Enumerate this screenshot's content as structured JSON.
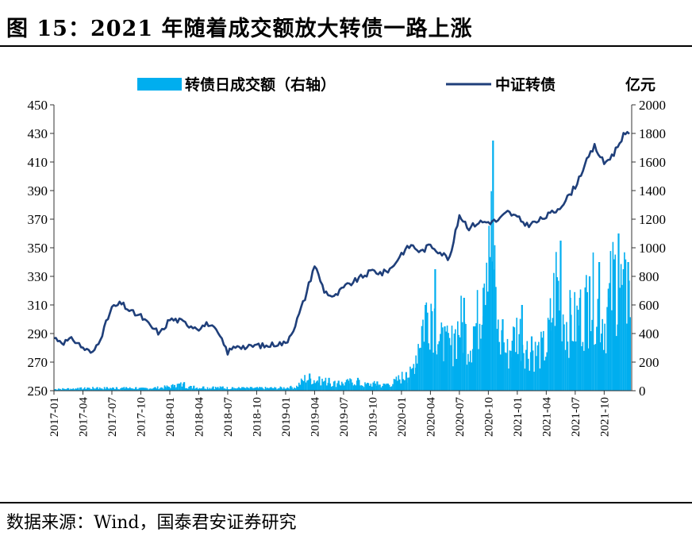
{
  "title": "图 15：2021 年随着成交额放大转债一路上涨",
  "source": "数据来源：Wind，国泰君安证券研究",
  "chart_data": {
    "type": "bar+line",
    "title": "",
    "right_axis_unit": "亿元",
    "legend": [
      "转债日成交额（右轴）",
      "中证转债"
    ],
    "legend_placement": "top",
    "grid": false,
    "left_axis": {
      "ylim": [
        250,
        450
      ],
      "ticks": [
        250,
        270,
        290,
        310,
        330,
        350,
        370,
        390,
        410,
        430,
        450
      ]
    },
    "right_axis": {
      "ylim": [
        0,
        2000
      ],
      "ticks": [
        0,
        200,
        400,
        600,
        800,
        1000,
        1200,
        1400,
        1600,
        1800,
        2000
      ]
    },
    "x_ticks": [
      "2017-01",
      "2017-04",
      "2017-07",
      "2017-10",
      "2018-01",
      "2018-04",
      "2018-07",
      "2018-10",
      "2019-01",
      "2019-04",
      "2019-07",
      "2019-10",
      "2020-01",
      "2020-04",
      "2020-07",
      "2020-10",
      "2021-01",
      "2021-04",
      "2021-07",
      "2021-10"
    ],
    "x_range": [
      "2017-01",
      "2021-12"
    ],
    "series": [
      {
        "name": "中证转债",
        "axis": "left",
        "color": "#1f3f7a",
        "x": [
          "2017-01",
          "2017-02",
          "2017-03",
          "2017-04",
          "2017-05",
          "2017-06",
          "2017-07",
          "2017-08",
          "2017-09",
          "2017-10",
          "2017-11",
          "2017-12",
          "2018-01",
          "2018-02",
          "2018-03",
          "2018-04",
          "2018-05",
          "2018-06",
          "2018-07",
          "2018-08",
          "2018-09",
          "2018-10",
          "2018-11",
          "2018-12",
          "2019-01",
          "2019-02",
          "2019-03",
          "2019-04",
          "2019-05",
          "2019-06",
          "2019-07",
          "2019-08",
          "2019-09",
          "2019-10",
          "2019-11",
          "2019-12",
          "2020-01",
          "2020-02",
          "2020-03",
          "2020-04",
          "2020-05",
          "2020-06",
          "2020-07",
          "2020-08",
          "2020-09",
          "2020-10",
          "2020-11",
          "2020-12",
          "2021-01",
          "2021-02",
          "2021-03",
          "2021-04",
          "2021-05",
          "2021-06",
          "2021-07",
          "2021-08",
          "2021-09",
          "2021-10",
          "2021-11",
          "2021-12"
        ],
        "values": [
          287,
          284,
          286,
          280,
          276,
          290,
          308,
          311,
          305,
          302,
          295,
          290,
          300,
          299,
          296,
          294,
          297,
          290,
          277,
          282,
          280,
          282,
          281,
          283,
          283,
          296,
          315,
          338,
          320,
          315,
          322,
          326,
          330,
          334,
          332,
          336,
          346,
          352,
          347,
          352,
          347,
          342,
          373,
          364,
          368,
          368,
          369,
          375,
          371,
          366,
          368,
          372,
          376,
          383,
          393,
          408,
          421,
          409,
          416,
          429
        ]
      },
      {
        "name": "转债日成交额（右轴）",
        "axis": "right",
        "color": "#00aeef",
        "x": [
          "2017-01",
          "2017-02",
          "2017-03",
          "2017-04",
          "2017-05",
          "2017-06",
          "2017-07",
          "2017-08",
          "2017-09",
          "2017-10",
          "2017-11",
          "2017-12",
          "2018-01",
          "2018-02",
          "2018-03",
          "2018-04",
          "2018-05",
          "2018-06",
          "2018-07",
          "2018-08",
          "2018-09",
          "2018-10",
          "2018-11",
          "2018-12",
          "2019-01",
          "2019-02",
          "2019-03",
          "2019-04",
          "2019-05",
          "2019-06",
          "2019-07",
          "2019-08",
          "2019-09",
          "2019-10",
          "2019-11",
          "2019-12",
          "2020-01",
          "2020-02",
          "2020-03",
          "2020-04",
          "2020-05",
          "2020-06",
          "2020-07",
          "2020-08",
          "2020-09",
          "2020-10",
          "2020-11",
          "2020-12",
          "2021-01",
          "2021-02",
          "2021-03",
          "2021-04",
          "2021-05",
          "2021-06",
          "2021-07",
          "2021-08",
          "2021-09",
          "2021-10",
          "2021-11",
          "2021-12"
        ],
        "values": [
          15,
          18,
          20,
          22,
          25,
          25,
          25,
          25,
          25,
          20,
          25,
          30,
          40,
          60,
          35,
          30,
          30,
          30,
          25,
          25,
          25,
          25,
          25,
          25,
          30,
          35,
          120,
          100,
          90,
          70,
          70,
          90,
          55,
          65,
          50,
          70,
          130,
          160,
          600,
          850,
          450,
          400,
          650,
          450,
          720,
          1750,
          500,
          350,
          600,
          380,
          360,
          420,
          1050,
          650,
          650,
          800,
          900,
          650,
          1100,
          900
        ]
      }
    ]
  }
}
